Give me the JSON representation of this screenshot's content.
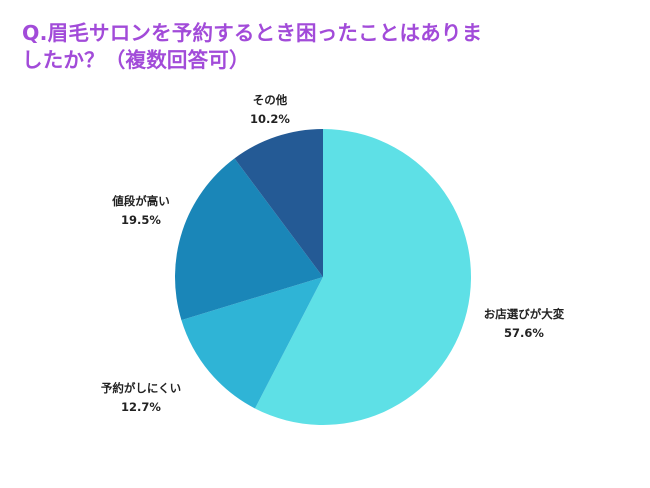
{
  "title_lines": [
    "Q.眉毛サロンを予約するとき困ったことはありま",
    "したか？（複数回答可）"
  ],
  "chart_data": {
    "type": "pie",
    "title": "Q.眉毛サロンを予約するとき困ったことはありましたか？（複数回答可）",
    "slices": [
      {
        "label": "お店選びが大変",
        "value": 57.6,
        "value_label": "57.6%",
        "color": "#5ee0e6"
      },
      {
        "label": "予約がしにくい",
        "value": 12.7,
        "value_label": "12.7%",
        "color": "#2fb4d6"
      },
      {
        "label": "値段が高い",
        "value": 19.5,
        "value_label": "19.5%",
        "color": "#1a86b8"
      },
      {
        "label": "その他",
        "value": 10.2,
        "value_label": "10.2%",
        "color": "#245a95"
      }
    ],
    "start": "12 o'clock",
    "direction": "clockwise",
    "legend": "none"
  }
}
